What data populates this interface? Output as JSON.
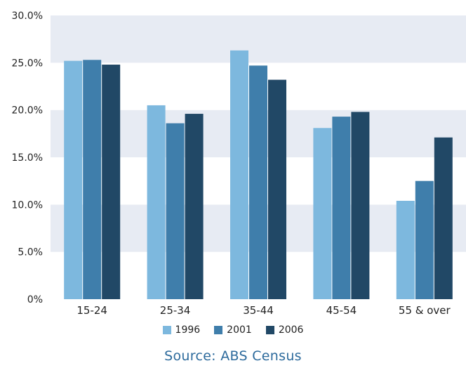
{
  "chart_data": {
    "type": "bar",
    "categories": [
      "15-24",
      "25-34",
      "35-44",
      "45-54",
      "55 & over"
    ],
    "series": [
      {
        "name": "1996",
        "values": [
          25.2,
          20.5,
          26.3,
          18.1,
          10.4
        ],
        "color": "#7db8de"
      },
      {
        "name": "2001",
        "values": [
          25.3,
          18.6,
          24.7,
          19.3,
          12.5
        ],
        "color": "#3f7eab"
      },
      {
        "name": "2006",
        "values": [
          24.8,
          19.6,
          23.2,
          19.8,
          17.1
        ],
        "color": "#214866"
      }
    ],
    "y_ticks": [
      "0%",
      "5.0%",
      "10.0%",
      "15.0%",
      "20.0%",
      "25.0%",
      "30.0%"
    ],
    "ylim": [
      0,
      30
    ],
    "band_colors": [
      "#ffffff",
      "#e7ebf3"
    ],
    "legend_position": "bottom",
    "source": "Source: ABS Census"
  }
}
